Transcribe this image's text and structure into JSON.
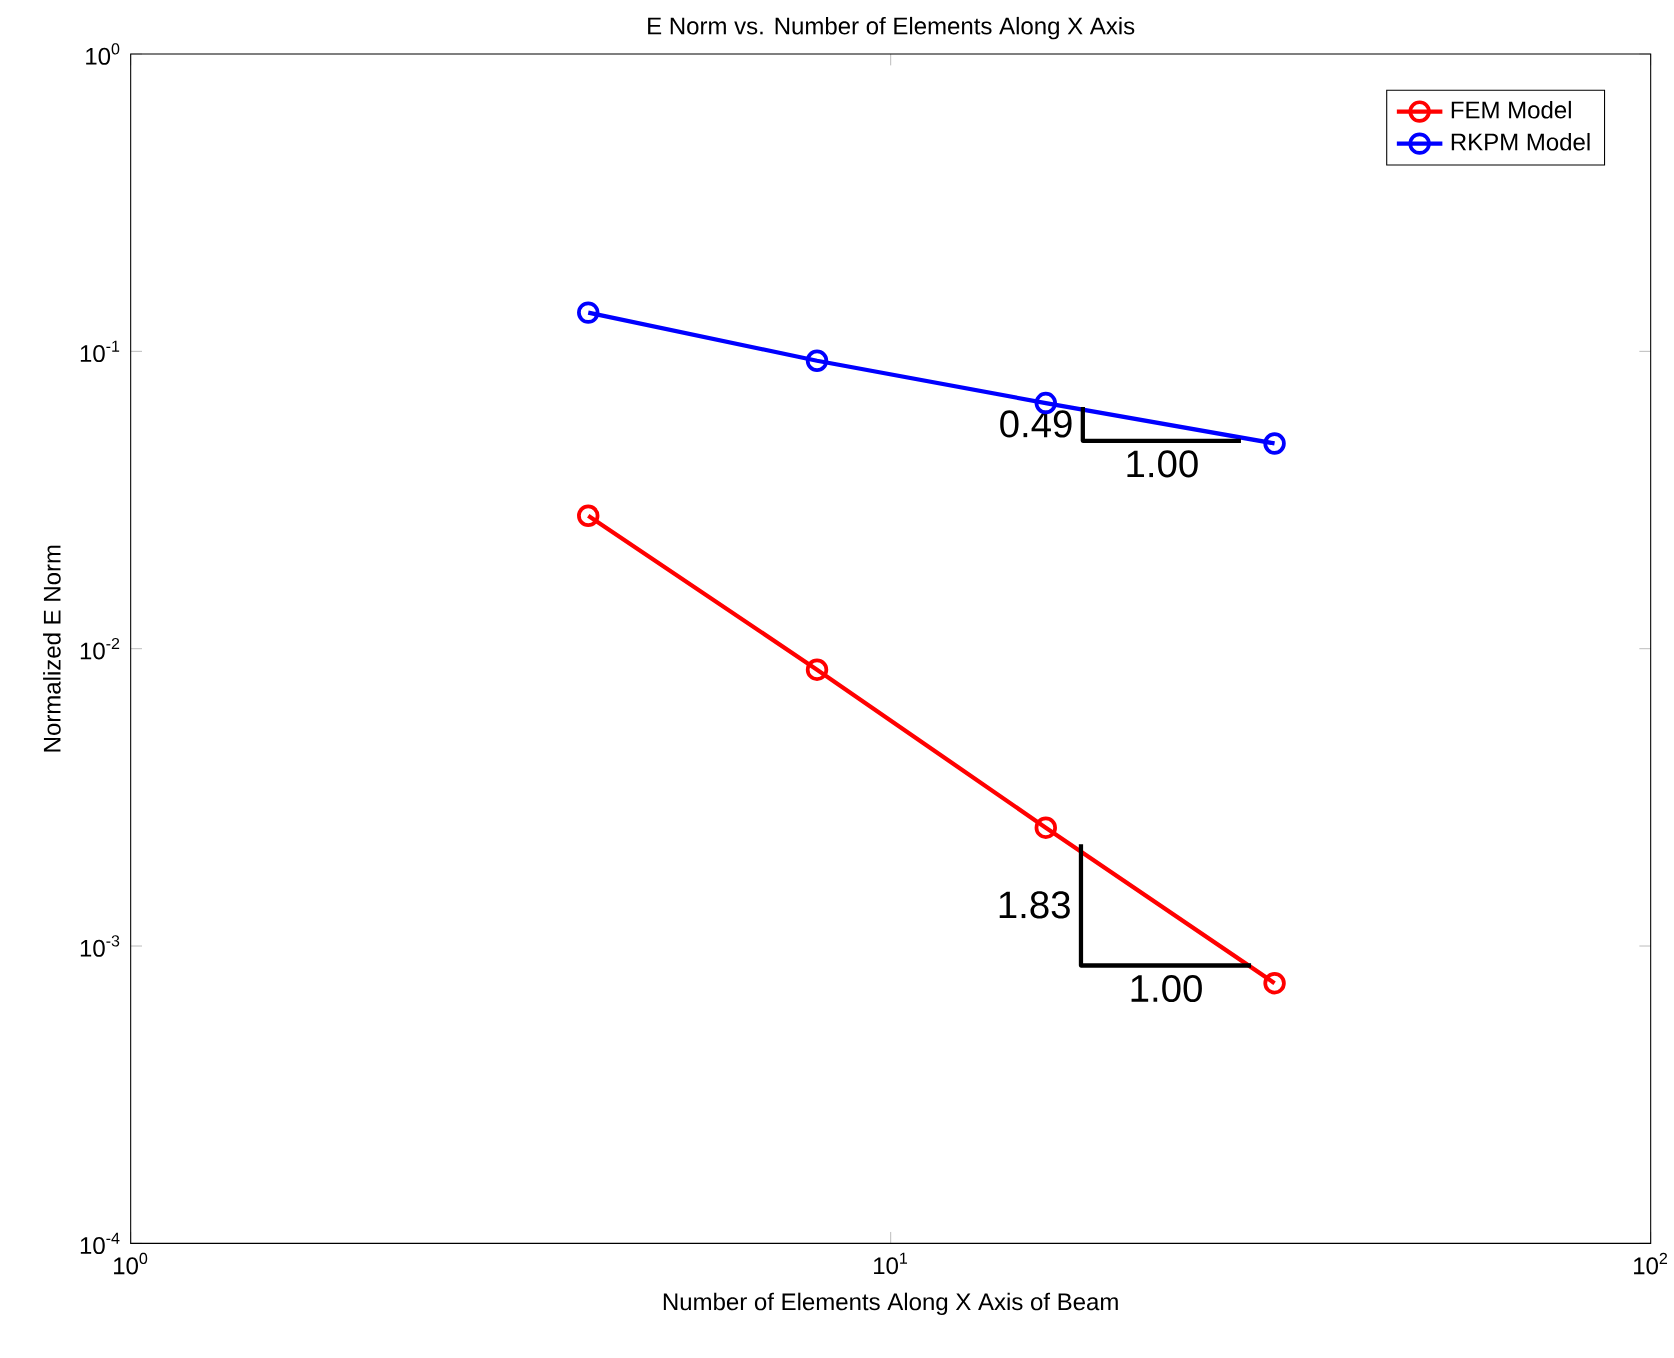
{
  "chart_data": {
    "type": "line",
    "title": "E Norm vs. Number of Elements Along X Axis",
    "xlabel": "Number of Elements Along X Axis of Beam",
    "ylabel": "Normalized E Norm",
    "log": "xy",
    "xlim": [
      1,
      100
    ],
    "ylim": [
      0.0001,
      1
    ],
    "xticks": [
      {
        "value": 1,
        "label": "10$^{0}$"
      },
      {
        "value": 10,
        "label": "10$^{1}$"
      },
      {
        "value": 100,
        "label": "10$^{2}$"
      }
    ],
    "yticks": [
      {
        "value": 0.0001,
        "label": "10$^{-4}$"
      },
      {
        "value": 0.001,
        "label": "10$^{-3}$"
      },
      {
        "value": 0.01,
        "label": "10$^{-2}$"
      },
      {
        "value": 0.1,
        "label": "10$^{-1}$"
      },
      {
        "value": 1,
        "label": "10$^{0}$"
      }
    ],
    "x": [
      4,
      8,
      16,
      32
    ],
    "marker": "circle",
    "legend": "top right",
    "series": [
      {
        "name": "FEM Model",
        "color": "#ff0000",
        "values": [
          0.028,
          0.0085,
          0.0025,
          0.00075
        ]
      },
      {
        "name": "RKPM Model",
        "color": "#0000ff",
        "values": [
          0.135,
          0.093,
          0.067,
          0.049
        ]
      },
      {
        "type": "line",
        "color": "#000000",
        "marker": "none",
        "x": [
          17.9,
          17.9,
          28.9
        ],
        "values": [
          0.065,
          0.05,
          0.05
        ]
      },
      {
        "type": "line",
        "color": "#000000",
        "marker": "none",
        "x": [
          17.8,
          17.8,
          29.8
        ],
        "values": [
          0.0022,
          0.00086,
          0.00086
        ]
      }
    ],
    "annotations": [
      "0.49",
      "1.00",
      "1.83",
      "1.00"
    ]
  }
}
